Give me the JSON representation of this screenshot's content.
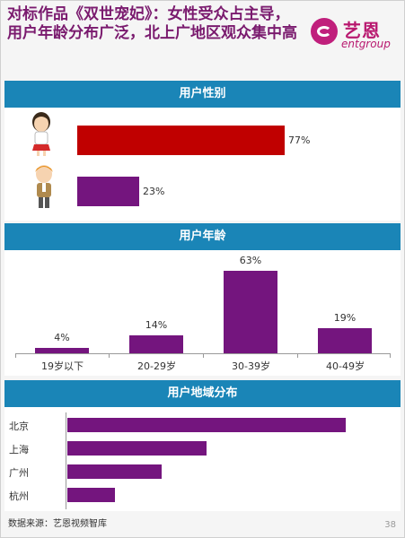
{
  "title": "对标作品《双世宠妃》：女性受众占主导，用户年龄分布广泛，北上广地区观众集中高",
  "logo": {
    "cn": "艺恩",
    "en": "entgroup"
  },
  "sections": {
    "gender": "用户性别",
    "age": "用户年龄",
    "region": "用户地域分布"
  },
  "colors": {
    "header": "#1a85b7",
    "female": "#c00000",
    "male": "#74157e",
    "bar": "#74157e",
    "title": "#7a1a6e"
  },
  "chart_data": [
    {
      "type": "bar",
      "orientation": "horizontal",
      "categories": [
        "女",
        "男"
      ],
      "icons": [
        "female-icon",
        "male-icon"
      ],
      "values": [
        77,
        23
      ],
      "value_labels": [
        "77%",
        "23%"
      ],
      "xlim": [
        0,
        100
      ]
    },
    {
      "type": "bar",
      "categories": [
        "19岁以下",
        "20-29岁",
        "30-39岁",
        "40-49岁"
      ],
      "values": [
        4,
        14,
        63,
        19
      ],
      "value_labels": [
        "4%",
        "14%",
        "63%",
        "19%"
      ],
      "ylim": [
        0,
        63
      ]
    },
    {
      "type": "bar",
      "orientation": "horizontal",
      "categories": [
        "北京",
        "上海",
        "广州",
        "杭州"
      ],
      "values": [
        100,
        50,
        34,
        17
      ],
      "xlim": [
        0,
        100
      ]
    }
  ],
  "footer": {
    "source": "数据来源：艺恩视频智库",
    "page": "38"
  }
}
